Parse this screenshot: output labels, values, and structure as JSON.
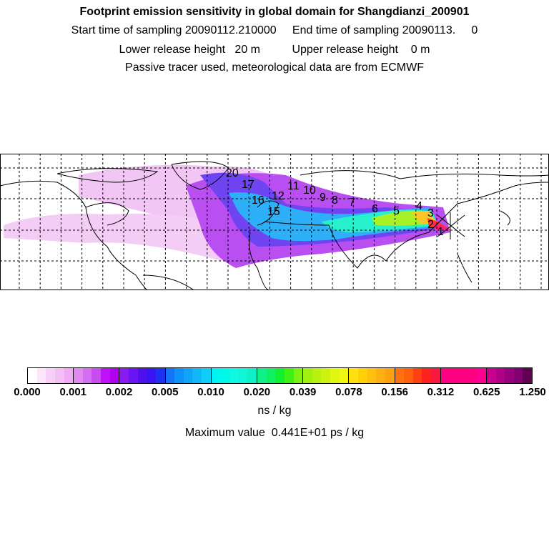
{
  "title": "Footprint emission sensitivity in global domain for Shangdianzi_200901",
  "sampling_line": "Start time of sampling 20090112.210000     End time of sampling 20090113.     0",
  "release_line": "Lower release height   20 m          Upper release height    0 m",
  "tracer_line": "Passive tracer used, meteorological data are from ECMWF",
  "trajectory_labels": [
    "1",
    "2",
    "3",
    "4",
    "5",
    "6",
    "7",
    "8",
    "9",
    "10",
    "11",
    "12",
    "15",
    "16",
    "17",
    "20"
  ],
  "colorbar": {
    "tick_labels": [
      "0.000",
      "0.001",
      "0.002",
      "0.005",
      "0.010",
      "0.020",
      "0.039",
      "0.078",
      "0.156",
      "0.312",
      "0.625",
      "1.250"
    ],
    "segments": [
      [
        "#ffffff",
        "#fbe6fb",
        "#f7d0f7",
        "#f3bdf5",
        "#efaaf3"
      ],
      [
        "#e08af0",
        "#d46ef0",
        "#c84cf0",
        "#bf10f7",
        "#b000f0"
      ],
      [
        "#8a1bf0",
        "#6a14f4",
        "#4f10f0",
        "#3a14f4",
        "#2030f0"
      ],
      [
        "#1474f8",
        "#1090f8",
        "#10a4f8",
        "#10b8f8",
        "#10ccf8"
      ],
      [
        "#00f4f4",
        "#00f8e8",
        "#10f8e0",
        "#10f4d8",
        "#10f0c8"
      ],
      [
        "#10f088",
        "#10f060",
        "#10f030",
        "#40f010",
        "#80f010"
      ],
      [
        "#a0f010",
        "#b8f010",
        "#d0f010",
        "#e0f810",
        "#f0f810"
      ],
      [
        "#ffe010",
        "#ffd008",
        "#ffc010",
        "#ffb010",
        "#ffa010"
      ],
      [
        "#ff7010",
        "#ff6010",
        "#ff4010",
        "#ff2020",
        "#f81840"
      ],
      [
        "#ff0080",
        "#ff0080",
        "#ff0080",
        "#ff0080",
        "#ff0090"
      ],
      [
        "#c80090",
        "#b00088",
        "#980080",
        "#800070",
        "#600050"
      ]
    ],
    "unit": "ns / kg"
  },
  "max_value_line": "Maximum value  0.441E+01 ps / kg"
}
